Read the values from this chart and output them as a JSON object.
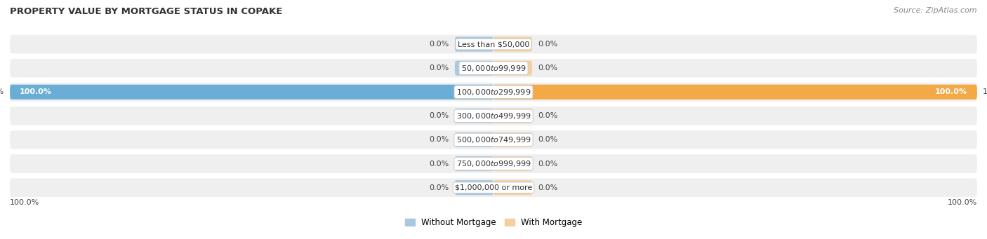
{
  "title": "PROPERTY VALUE BY MORTGAGE STATUS IN COPAKE",
  "source": "Source: ZipAtlas.com",
  "categories": [
    "Less than $50,000",
    "$50,000 to $99,999",
    "$100,000 to $299,999",
    "$300,000 to $499,999",
    "$500,000 to $749,999",
    "$750,000 to $999,999",
    "$1,000,000 or more"
  ],
  "without_mortgage": [
    0.0,
    0.0,
    100.0,
    0.0,
    0.0,
    0.0,
    0.0
  ],
  "with_mortgage": [
    0.0,
    0.0,
    100.0,
    0.0,
    0.0,
    0.0,
    0.0
  ],
  "color_without_full": "#6aaed6",
  "color_with_full": "#f4a947",
  "color_without_stub": "#aac8e0",
  "color_with_stub": "#f5cfa0",
  "row_bg": "#efefef",
  "row_separator": "#ffffff",
  "xlim_left": -100,
  "xlim_right": 100,
  "stub_size": 8.0,
  "bar_height": 0.62,
  "figsize": [
    14.06,
    3.41
  ],
  "dpi": 100,
  "label_fontsize": 8.0,
  "cat_fontsize": 8.0,
  "title_fontsize": 9.5,
  "source_fontsize": 8.0
}
